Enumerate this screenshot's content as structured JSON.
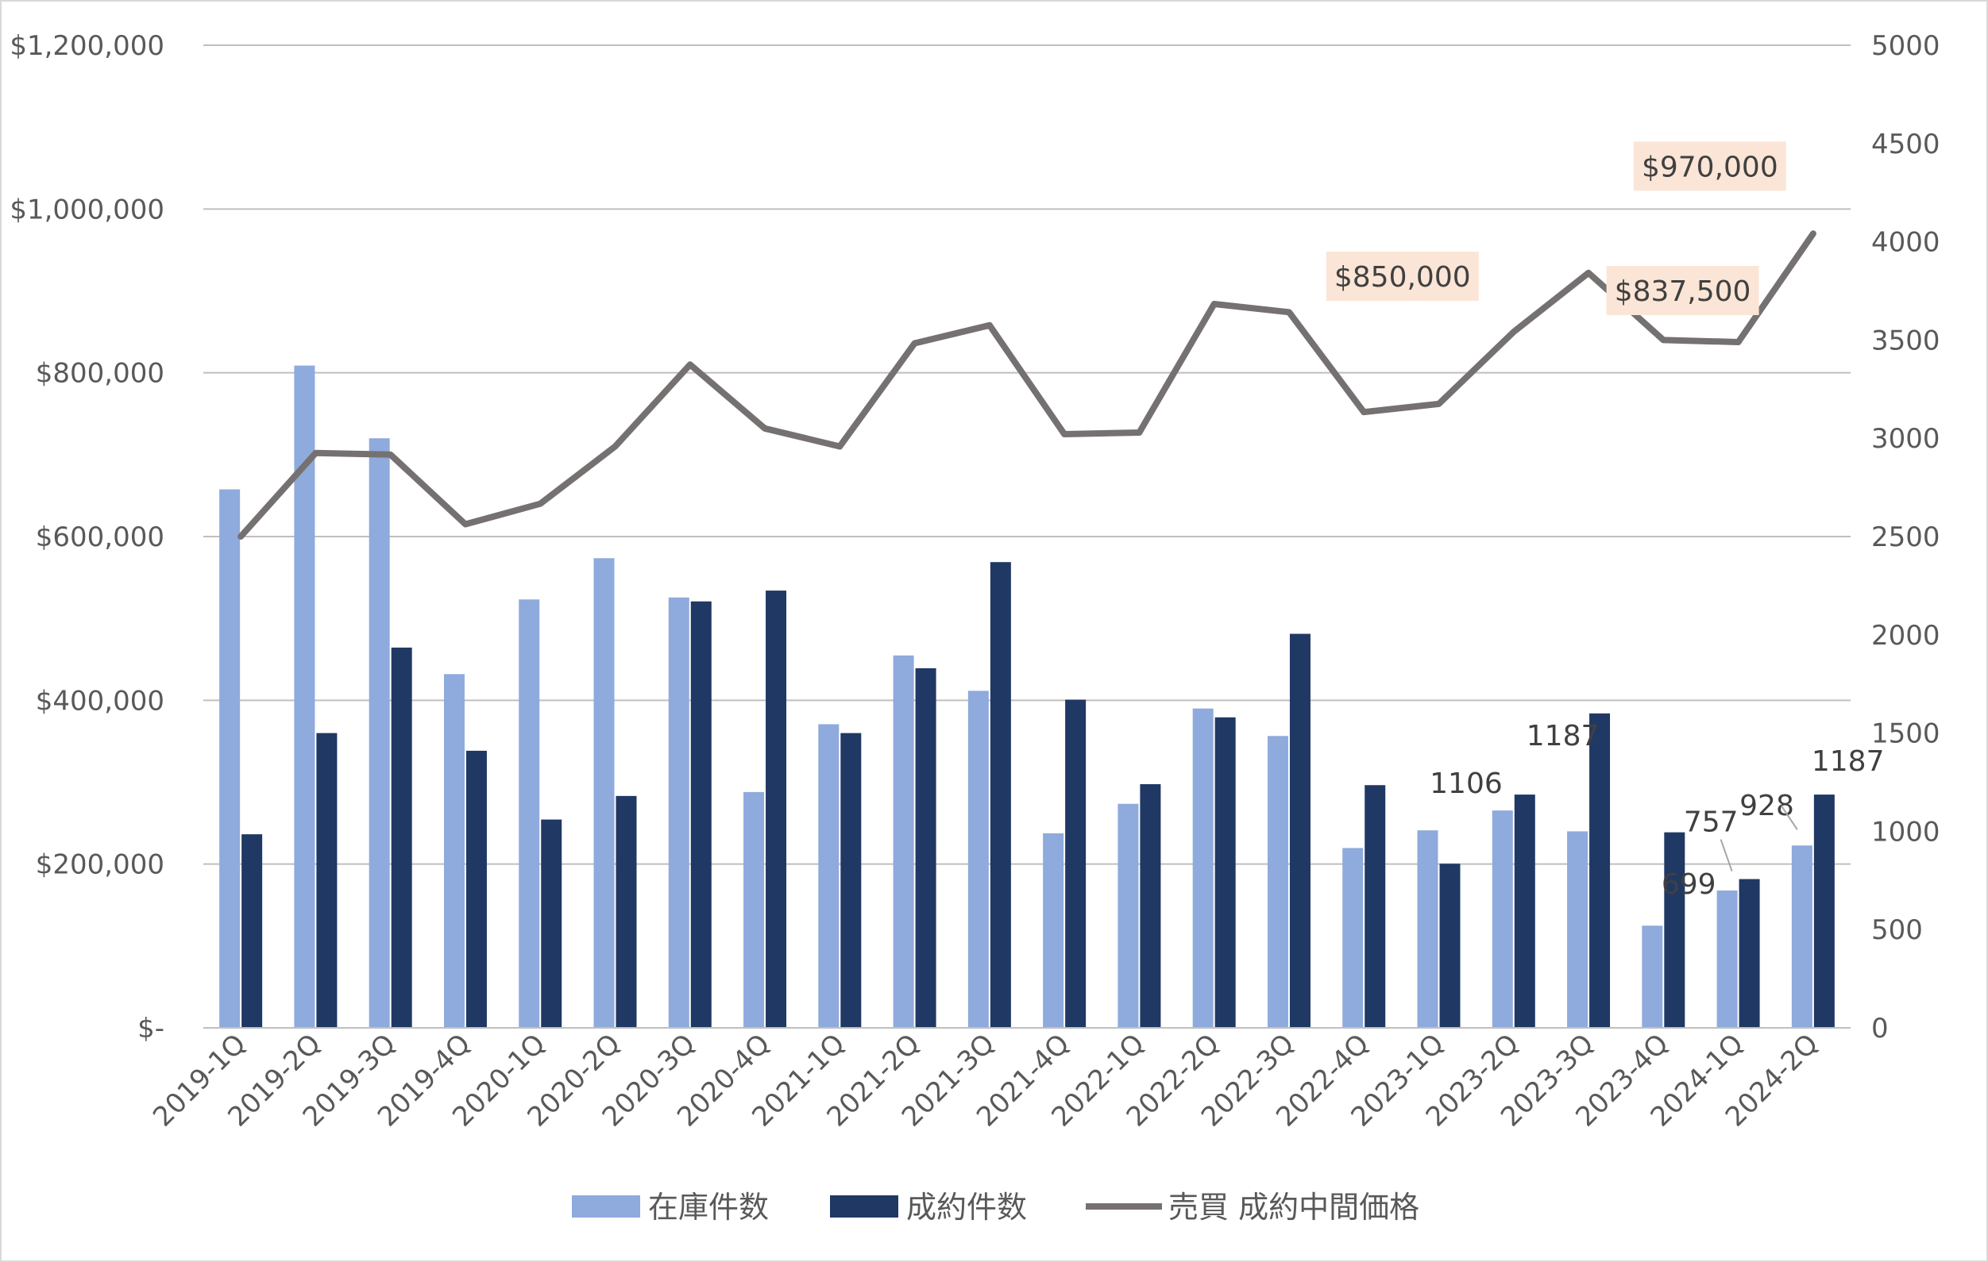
{
  "chart_data": {
    "type": "bar",
    "categories": [
      "2019-1Q",
      "2019-2Q",
      "2019-3Q",
      "2019-4Q",
      "2020-1Q",
      "2020-2Q",
      "2020-3Q",
      "2020-4Q",
      "2021-1Q",
      "2021-2Q",
      "2021-3Q",
      "2021-4Q",
      "2022-1Q",
      "2022-2Q",
      "2022-3Q",
      "2022-4Q",
      "2023-1Q",
      "2023-2Q",
      "2023-3Q",
      "2023-4Q",
      "2024-1Q",
      "2024-2Q"
    ],
    "series": [
      {
        "name": "在庫件数",
        "type": "bar",
        "axis": "right",
        "color": "#8faadc",
        "values": [
          2740,
          3370,
          3000,
          1800,
          2180,
          2390,
          2190,
          1200,
          1545,
          1895,
          1715,
          990,
          1140,
          1625,
          1485,
          915,
          1005,
          1106,
          1000,
          520,
          699,
          928
        ]
      },
      {
        "name": "成約件数",
        "type": "bar",
        "axis": "right",
        "color": "#203864",
        "values": [
          985,
          1500,
          1935,
          1410,
          1060,
          1180,
          2170,
          2225,
          1500,
          1830,
          2370,
          1670,
          1240,
          1580,
          2005,
          1235,
          835,
          1187,
          1600,
          995,
          757,
          1187
        ]
      },
      {
        "name": "売買 成約中間価格",
        "type": "line",
        "axis": "left",
        "color": "#767171",
        "values": [
          600000,
          702000,
          700000,
          615000,
          640000,
          710000,
          810000,
          732000,
          710000,
          836000,
          858000,
          725000,
          727000,
          884000,
          874000,
          752000,
          762000,
          850000,
          922000,
          840000,
          837500,
          970000
        ]
      }
    ],
    "left_axis": {
      "ylim": [
        0,
        1200000
      ],
      "ticks": [
        0,
        200000,
        400000,
        600000,
        800000,
        1000000,
        1200000
      ],
      "tick_labels": [
        "$-",
        "$200,000",
        "$400,000",
        "$600,000",
        "$800,000",
        "$1,000,000",
        "$1,200,000"
      ]
    },
    "right_axis": {
      "ylim": [
        0,
        5000
      ],
      "ticks": [
        0,
        500,
        1000,
        1500,
        2000,
        2500,
        3000,
        3500,
        4000,
        4500,
        5000
      ],
      "tick_labels": [
        "0",
        "500",
        "1000",
        "1500",
        "2000",
        "2500",
        "3000",
        "3500",
        "4000",
        "4500",
        "5000"
      ]
    },
    "grid": true,
    "legend_placement": "bottom",
    "data_labels": [
      {
        "series": "在庫件数",
        "category": "2023-2Q",
        "text": "1106"
      },
      {
        "series": "成約件数",
        "category": "2023-2Q",
        "text": "1187"
      },
      {
        "series": "在庫件数",
        "category": "2024-1Q",
        "text": "699"
      },
      {
        "series": "成約件数",
        "category": "2024-1Q",
        "text": "757"
      },
      {
        "series": "在庫件数",
        "category": "2024-2Q",
        "text": "928"
      },
      {
        "series": "成約件数",
        "category": "2024-2Q",
        "text": "1187"
      }
    ],
    "price_callouts": [
      {
        "category": "2023-2Q",
        "text": "$850,000"
      },
      {
        "category": "2024-1Q",
        "text": "$837,500"
      },
      {
        "category": "2024-2Q",
        "text": "$970,000"
      }
    ],
    "callout_color": "#fbe5d6"
  }
}
